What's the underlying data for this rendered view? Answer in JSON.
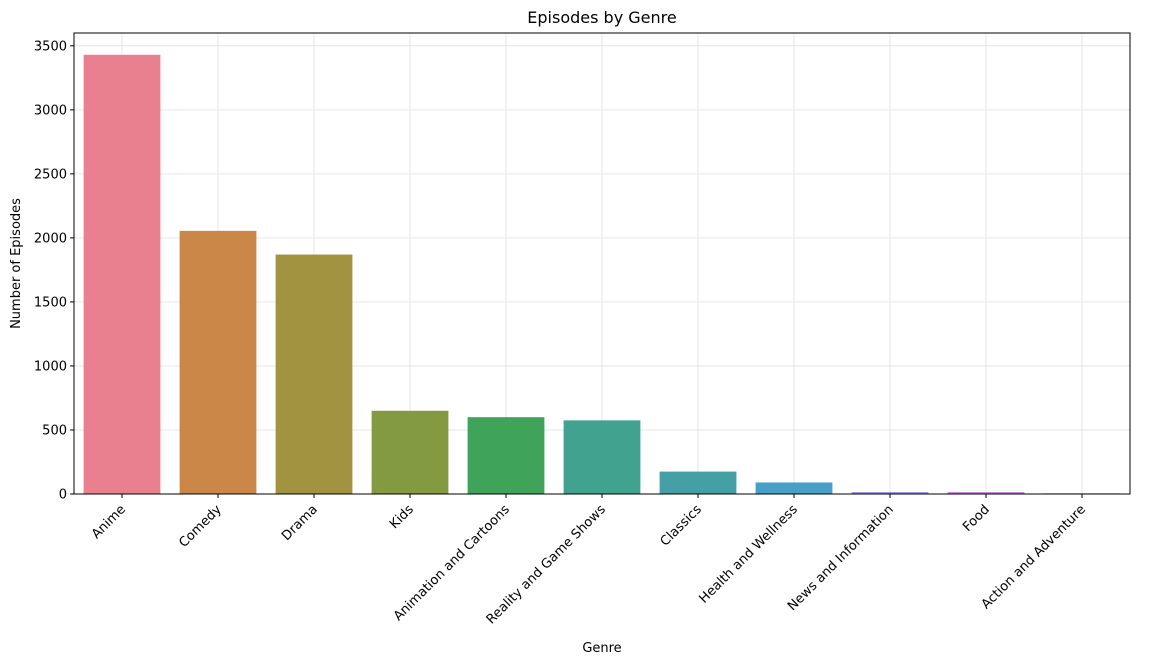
{
  "chart_data": {
    "type": "bar",
    "title": "Episodes by Genre",
    "xlabel": "Genre",
    "ylabel": "Number of Episodes",
    "categories": [
      "Anime",
      "Comedy",
      "Drama",
      "Kids",
      "Animation and Cartoons",
      "Reality and Game Shows",
      "Classics",
      "Health and Wellness",
      "News and Information",
      "Food",
      "Action and Adventure"
    ],
    "values": [
      3430,
      2055,
      1870,
      650,
      600,
      575,
      175,
      90,
      15,
      15,
      5
    ],
    "colors": [
      "#e8808f",
      "#cb8748",
      "#a29340",
      "#839a40",
      "#40a35a",
      "#41a28f",
      "#45a0a5",
      "#479ec6",
      "#8f94e9",
      "#c77de8",
      "#e478c6"
    ],
    "ylim": [
      0,
      3600
    ],
    "yticks": [
      "0",
      "500",
      "1000",
      "1500",
      "2000",
      "2500",
      "3000",
      "3500"
    ],
    "grid": true,
    "legend": "none"
  }
}
